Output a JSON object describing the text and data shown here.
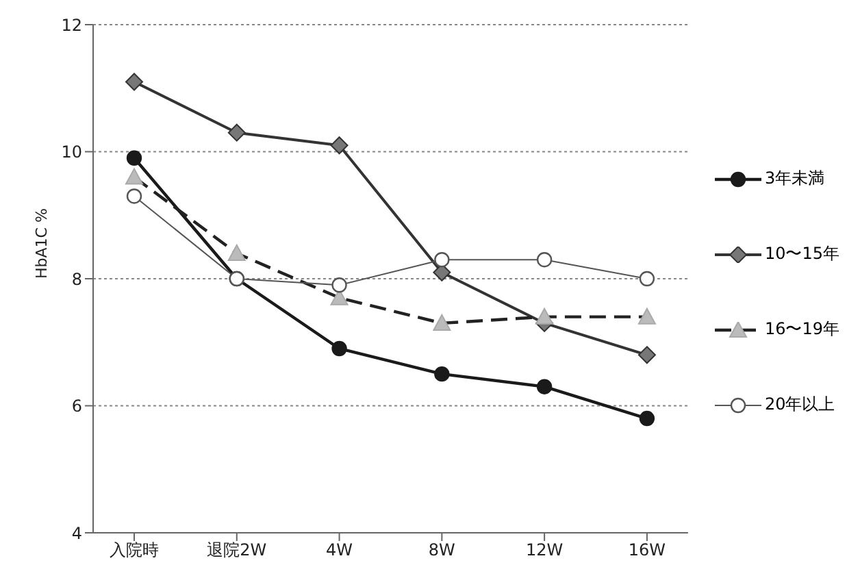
{
  "chart_data": {
    "type": "line",
    "ylabel": "HbA1C %",
    "categories": [
      "入院時",
      "退院2W",
      "4W",
      "8W",
      "12W",
      "16W"
    ],
    "series": [
      {
        "name": "3年未満",
        "color": "#1a1a1a",
        "marker": "circle",
        "line_style": "solid",
        "values": [
          9.9,
          8.0,
          6.9,
          6.5,
          6.3,
          5.8
        ]
      },
      {
        "name": "10〜15年",
        "color": "#333333",
        "marker": "diamond",
        "line_style": "solid",
        "values": [
          11.1,
          10.3,
          10.1,
          8.1,
          7.3,
          6.8
        ]
      },
      {
        "name": "16〜19年",
        "color": "#222222",
        "marker": "triangle",
        "line_style": "dashed",
        "values": [
          9.6,
          8.4,
          7.7,
          7.3,
          7.4,
          7.4
        ]
      },
      {
        "name": "20年以上",
        "color": "#555555",
        "marker": "circle",
        "line_style": "solid",
        "values": [
          9.3,
          8.0,
          7.9,
          8.3,
          8.3,
          8.0
        ]
      }
    ],
    "ylim": [
      4,
      12
    ],
    "yticks": [
      4,
      6,
      8,
      10,
      12
    ],
    "grid": "y",
    "legend": "right"
  }
}
